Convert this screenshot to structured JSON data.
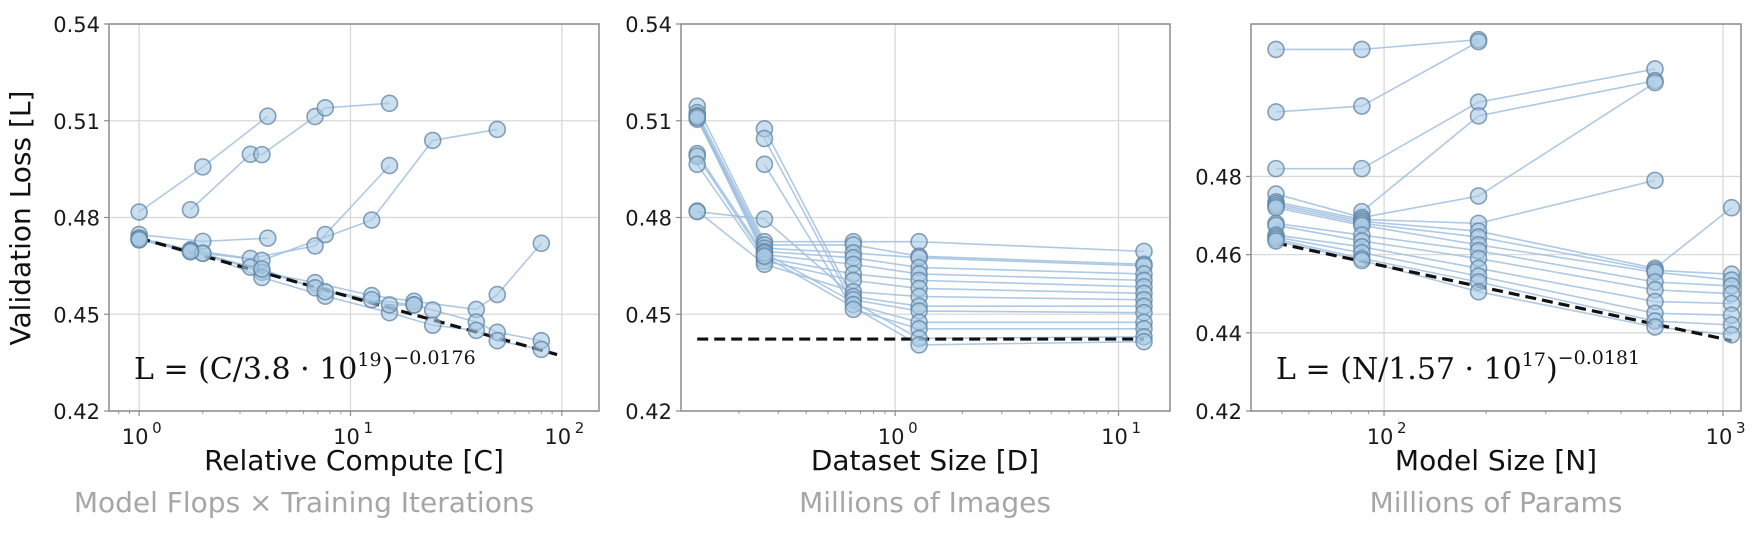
{
  "figure": {
    "ylabel": "Validation Loss [L]",
    "colors": {
      "point_fill": "#a9c9e4",
      "point_edge": "#5f83a3",
      "line": "#9fc0df",
      "fit_line": "#111111",
      "grid": "#d9d9d9",
      "frame": "#8c8c8c",
      "subtitle": "#a6a6a6"
    }
  },
  "chart_data": [
    {
      "type": "scatter",
      "title": "",
      "xlabel": "Relative Compute [C]",
      "subtitle": "Model Flops × Training Iterations",
      "ylabel": "Validation Loss [L]",
      "xscale": "log",
      "xlim": [
        0.72,
        150
      ],
      "ylim": [
        0.42,
        0.54
      ],
      "yticks": [
        0.42,
        0.45,
        0.48,
        0.51,
        0.54
      ],
      "ytick_labels": [
        "0.42",
        "0.45",
        "0.48",
        "0.51",
        "0.54"
      ],
      "xticks": [
        1,
        10,
        100
      ],
      "xtick_labels": [
        "10^0",
        "10^1",
        "10^2"
      ],
      "grid": true,
      "formula": {
        "lhs": "L = (C/3.8 · 10",
        "exp1": "19",
        "rhs": ")",
        "exp2": "−0.0176"
      },
      "fit": {
        "x": [
          1,
          95
        ],
        "y": [
          0.4736,
          0.4375
        ],
        "style": "dashed"
      },
      "series": [
        {
          "x": [
            1,
            2.0,
            4.06
          ],
          "y": [
            0.4817,
            0.4957,
            0.5114
          ]
        },
        {
          "x": [
            1.75,
            3.36,
            3.81,
            6.8,
            7.6,
            15.3
          ],
          "y": [
            0.4824,
            0.4996,
            0.4995,
            0.5113,
            0.514,
            0.5154
          ]
        },
        {
          "x": [
            1,
            2.0,
            4.06
          ],
          "y": [
            0.4747,
            0.4726,
            0.4736
          ]
        },
        {
          "x": [
            1,
            1.75,
            3.36,
            6.8,
            7.6,
            15.3
          ],
          "y": [
            0.4736,
            0.4699,
            0.4673,
            0.4712,
            0.4747,
            0.4961
          ]
        },
        {
          "x": [
            1,
            1.75,
            3.81,
            12.6,
            24.5,
            49.5
          ],
          "y": [
            0.4731,
            0.4694,
            0.4667,
            0.4792,
            0.5039,
            0.5073
          ]
        },
        {
          "x": [
            1,
            2.0,
            3.81,
            6.8,
            12.6,
            20,
            39.4,
            49.5,
            80
          ],
          "y": [
            0.4731,
            0.4689,
            0.463,
            0.4598,
            0.4558,
            0.454,
            0.4515,
            0.4561,
            0.472
          ]
        },
        {
          "x": [
            1,
            1.75,
            3.36,
            6.8,
            12.6,
            20,
            24.5,
            39.4,
            49.5,
            80
          ],
          "y": [
            0.4736,
            0.4699,
            0.4646,
            0.4582,
            0.4545,
            0.4529,
            0.4513,
            0.4476,
            0.4444,
            0.4418
          ]
        },
        {
          "x": [
            1,
            2.0,
            3.81,
            7.6,
            15.3,
            24.5,
            39.4,
            49.5,
            80
          ],
          "y": [
            0.4731,
            0.4689,
            0.4614,
            0.4556,
            0.4505,
            0.4466,
            0.445,
            0.4418,
            0.4391
          ]
        },
        {
          "x": [
            1.75,
            3.81,
            7.6,
            15.3,
            20
          ],
          "y": [
            0.4694,
            0.464,
            0.457,
            0.4529,
            0.4529
          ]
        }
      ]
    },
    {
      "type": "scatter",
      "title": "",
      "xlabel": "Dataset Size [D]",
      "subtitle": "Millions of Images",
      "ylabel": "",
      "xscale": "log",
      "xlim": [
        0.11,
        17
      ],
      "ylim": [
        0.42,
        0.54
      ],
      "yticks": [
        0.42,
        0.45,
        0.48,
        0.51,
        0.54
      ],
      "ytick_labels": [
        "0.42",
        "0.45",
        "0.48",
        "0.51",
        "0.54"
      ],
      "xticks": [
        1,
        10
      ],
      "xtick_labels": [
        "10^0",
        "10^1"
      ],
      "grid": true,
      "fit": {
        "x": [
          0.13,
          13
        ],
        "y": [
          0.4423,
          0.4423
        ],
        "style": "dashed"
      },
      "series": [
        {
          "x": [
            0.13,
            0.26,
            0.65,
            1.28,
            13
          ],
          "y": [
            0.5145,
            0.4725,
            0.4725,
            0.4725,
            0.4695
          ]
        },
        {
          "x": [
            0.13,
            0.26,
            0.65,
            1.28,
            13
          ],
          "y": [
            0.5125,
            0.4715,
            0.4715,
            0.468,
            0.4655
          ]
        },
        {
          "x": [
            0.13,
            0.26,
            0.65,
            1.28,
            13
          ],
          "y": [
            0.5115,
            0.4705,
            0.469,
            0.4675,
            0.465
          ]
        },
        {
          "x": [
            0.13,
            0.26,
            0.65,
            1.28,
            13
          ],
          "y": [
            0.5105,
            0.4695,
            0.4675,
            0.4645,
            0.4625
          ]
        },
        {
          "x": [
            0.13,
            0.26,
            0.65,
            1.28,
            13
          ],
          "y": [
            0.4998,
            0.4685,
            0.4655,
            0.4625,
            0.4605
          ]
        },
        {
          "x": [
            0.13,
            0.26,
            0.65,
            1.28,
            13
          ],
          "y": [
            0.499,
            0.4675,
            0.4625,
            0.4605,
            0.4585
          ]
        },
        {
          "x": [
            0.13,
            0.26,
            0.65,
            1.28,
            13
          ],
          "y": [
            0.4965,
            0.4665,
            0.4605,
            0.458,
            0.4565
          ]
        },
        {
          "x": [
            0.13,
            0.26,
            0.65,
            1.28,
            13
          ],
          "y": [
            0.482,
            0.4655,
            0.457,
            0.4555,
            0.4545
          ]
        },
        {
          "x": [
            0.13,
            0.26,
            0.65,
            1.28,
            13
          ],
          "y": [
            0.4818,
            0.4795,
            0.4555,
            0.4525,
            0.4525
          ]
        },
        {
          "x": [
            0.26,
            0.65,
            1.28,
            13
          ],
          "y": [
            0.5075,
            0.4545,
            0.451,
            0.4505
          ]
        },
        {
          "x": [
            0.26,
            0.65,
            1.28,
            13
          ],
          "y": [
            0.5045,
            0.453,
            0.4475,
            0.4475
          ]
        },
        {
          "x": [
            0.26,
            0.65,
            1.28,
            13
          ],
          "y": [
            0.4965,
            0.4515,
            0.4455,
            0.4455
          ]
        },
        {
          "x": [
            0.13,
            0.26,
            1.28,
            13
          ],
          "y": [
            0.5115,
            0.469,
            0.4425,
            0.443
          ]
        },
        {
          "x": [
            0.13,
            0.26,
            1.28,
            13
          ],
          "y": [
            0.511,
            0.468,
            0.4405,
            0.4415
          ]
        }
      ]
    },
    {
      "type": "scatter",
      "title": "",
      "xlabel": "Model Size [N]",
      "subtitle": "Millions of Params",
      "ylabel": "",
      "xscale": "log",
      "xlim": [
        40.5,
        1130
      ],
      "ylim": [
        0.42,
        0.519
      ],
      "yticks": [
        0.42,
        0.44,
        0.46,
        0.48
      ],
      "ytick_labels": [
        "0.42",
        "0.44",
        "0.46",
        "0.48"
      ],
      "xticks": [
        100,
        1000
      ],
      "xtick_labels": [
        "10^2",
        "10^3"
      ],
      "grid": true,
      "formula": {
        "lhs": "L = (N/1.57 · 10",
        "exp1": "17",
        "rhs": ")",
        "exp2": "−0.0181"
      },
      "fit": {
        "x": [
          48,
          1060
        ],
        "y": [
          0.463,
          0.438
        ],
        "style": "dashed"
      },
      "series": [
        {
          "x": [
            48,
            86,
            190
          ],
          "y": [
            0.5125,
            0.5125,
            0.515
          ]
        },
        {
          "x": [
            48,
            86,
            190
          ],
          "y": [
            0.4965,
            0.498,
            0.5145
          ]
        },
        {
          "x": [
            48,
            86,
            190,
            630
          ],
          "y": [
            0.482,
            0.482,
            0.499,
            0.5075
          ]
        },
        {
          "x": [
            86,
            190,
            630
          ],
          "y": [
            0.471,
            0.4955,
            0.5045
          ]
        },
        {
          "x": [
            48,
            86,
            190,
            630
          ],
          "y": [
            0.4755,
            0.4695,
            0.475,
            0.504
          ]
        },
        {
          "x": [
            48,
            86,
            190,
            630
          ],
          "y": [
            0.4735,
            0.469,
            0.468,
            0.479
          ]
        },
        {
          "x": [
            48,
            86,
            190,
            630,
            1060
          ],
          "y": [
            0.473,
            0.4685,
            0.466,
            0.4565,
            0.472
          ]
        },
        {
          "x": [
            48,
            86,
            190,
            630,
            1060
          ],
          "y": [
            0.4725,
            0.468,
            0.4645,
            0.456,
            0.455
          ]
        },
        {
          "x": [
            48,
            86,
            190,
            630,
            1060
          ],
          "y": [
            0.472,
            0.4675,
            0.4625,
            0.4555,
            0.4535
          ]
        },
        {
          "x": [
            48,
            86,
            190,
            630,
            1060
          ],
          "y": [
            0.468,
            0.465,
            0.461,
            0.453,
            0.452
          ]
        },
        {
          "x": [
            48,
            86,
            190,
            630,
            1060
          ],
          "y": [
            0.4675,
            0.4635,
            0.459,
            0.451,
            0.45
          ]
        },
        {
          "x": [
            48,
            86,
            190,
            630,
            1060
          ],
          "y": [
            0.465,
            0.462,
            0.4565,
            0.448,
            0.4475
          ]
        },
        {
          "x": [
            48,
            86,
            190,
            630,
            1060
          ],
          "y": [
            0.4645,
            0.4605,
            0.4545,
            0.445,
            0.4445
          ]
        },
        {
          "x": [
            48,
            86,
            190,
            630,
            1060
          ],
          "y": [
            0.464,
            0.459,
            0.453,
            0.443,
            0.442
          ]
        },
        {
          "x": [
            48,
            86,
            190,
            630,
            1060
          ],
          "y": [
            0.4635,
            0.4585,
            0.4505,
            0.4415,
            0.4395
          ]
        }
      ]
    }
  ]
}
